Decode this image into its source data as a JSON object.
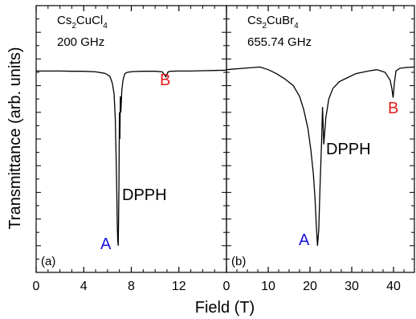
{
  "chart_data": [
    {
      "type": "line",
      "panel_label": "(a)",
      "compound": {
        "base": "Cs",
        "sub1": "2",
        "mid": "CuCl",
        "sub2": "4"
      },
      "frequency": "200 GHz",
      "xlim": [
        0,
        16
      ],
      "ylim": [
        0,
        1
      ],
      "xticks": [
        0,
        4,
        8,
        12
      ],
      "xtick_labels": [
        "0",
        "4",
        "8",
        "12"
      ],
      "series": [
        {
          "x": [
            0,
            1,
            2,
            3,
            4,
            5,
            5.8,
            6.2,
            6.4,
            6.55,
            6.65,
            6.72,
            6.78,
            6.82,
            6.86,
            6.9,
            6.93,
            6.96,
            7.0,
            7.04,
            7.08,
            7.12,
            7.2,
            7.3,
            7.45,
            7.6,
            7.8,
            8.2,
            9,
            10,
            10.6,
            10.8,
            10.9,
            11.0,
            11.1,
            11.3,
            12,
            13,
            14,
            15,
            16
          ],
          "y": [
            0.755,
            0.755,
            0.755,
            0.754,
            0.754,
            0.752,
            0.746,
            0.735,
            0.71,
            0.67,
            0.58,
            0.44,
            0.3,
            0.18,
            0.12,
            0.1,
            0.2,
            0.32,
            0.6,
            0.5,
            0.66,
            0.6,
            0.68,
            0.72,
            0.745,
            0.749,
            0.751,
            0.753,
            0.754,
            0.754,
            0.752,
            0.74,
            0.733,
            0.743,
            0.752,
            0.754,
            0.755,
            0.755,
            0.756,
            0.757,
            0.758
          ]
        }
      ],
      "annotations": [
        {
          "text": "A",
          "color": "#1a14e0"
        },
        {
          "text": "B",
          "color": "#e41c1c"
        },
        {
          "text": "DPPH",
          "color": "#000000"
        }
      ]
    },
    {
      "type": "line",
      "panel_label": "(b)",
      "compound": {
        "base": "Cs",
        "sub1": "2",
        "mid": "CuBr",
        "sub2": "4"
      },
      "frequency": "655.74 GHz",
      "xlim": [
        0,
        45
      ],
      "ylim": [
        0,
        1
      ],
      "xticks": [
        0,
        10,
        20,
        30,
        40
      ],
      "xtick_labels": [
        "0",
        "10",
        "20",
        "30",
        "40"
      ],
      "series": [
        {
          "x": [
            0,
            4,
            8,
            10,
            12,
            14,
            16,
            17.5,
            18.5,
            19.5,
            20.2,
            20.8,
            21.2,
            21.5,
            21.8,
            22.1,
            22.4,
            22.8,
            23.0,
            23.3,
            23.8,
            24.5,
            25.5,
            27,
            29,
            31,
            34,
            36,
            38,
            39.2,
            39.6,
            39.9,
            40.2,
            40.6,
            41.5,
            43,
            45
          ],
          "y": [
            0.76,
            0.765,
            0.77,
            0.76,
            0.745,
            0.725,
            0.7,
            0.66,
            0.61,
            0.54,
            0.46,
            0.37,
            0.28,
            0.18,
            0.1,
            0.16,
            0.32,
            0.5,
            0.62,
            0.48,
            0.58,
            0.65,
            0.69,
            0.715,
            0.73,
            0.745,
            0.755,
            0.76,
            0.75,
            0.72,
            0.69,
            0.655,
            0.71,
            0.755,
            0.765,
            0.768,
            0.77
          ]
        }
      ],
      "annotations": [
        {
          "text": "A",
          "color": "#1a14e0"
        },
        {
          "text": "B",
          "color": "#e41c1c"
        },
        {
          "text": "DPPH",
          "color": "#000000"
        }
      ]
    }
  ],
  "axes": {
    "xlabel": "Field (T)",
    "ylabel": "Transmittance (arb. units)"
  }
}
